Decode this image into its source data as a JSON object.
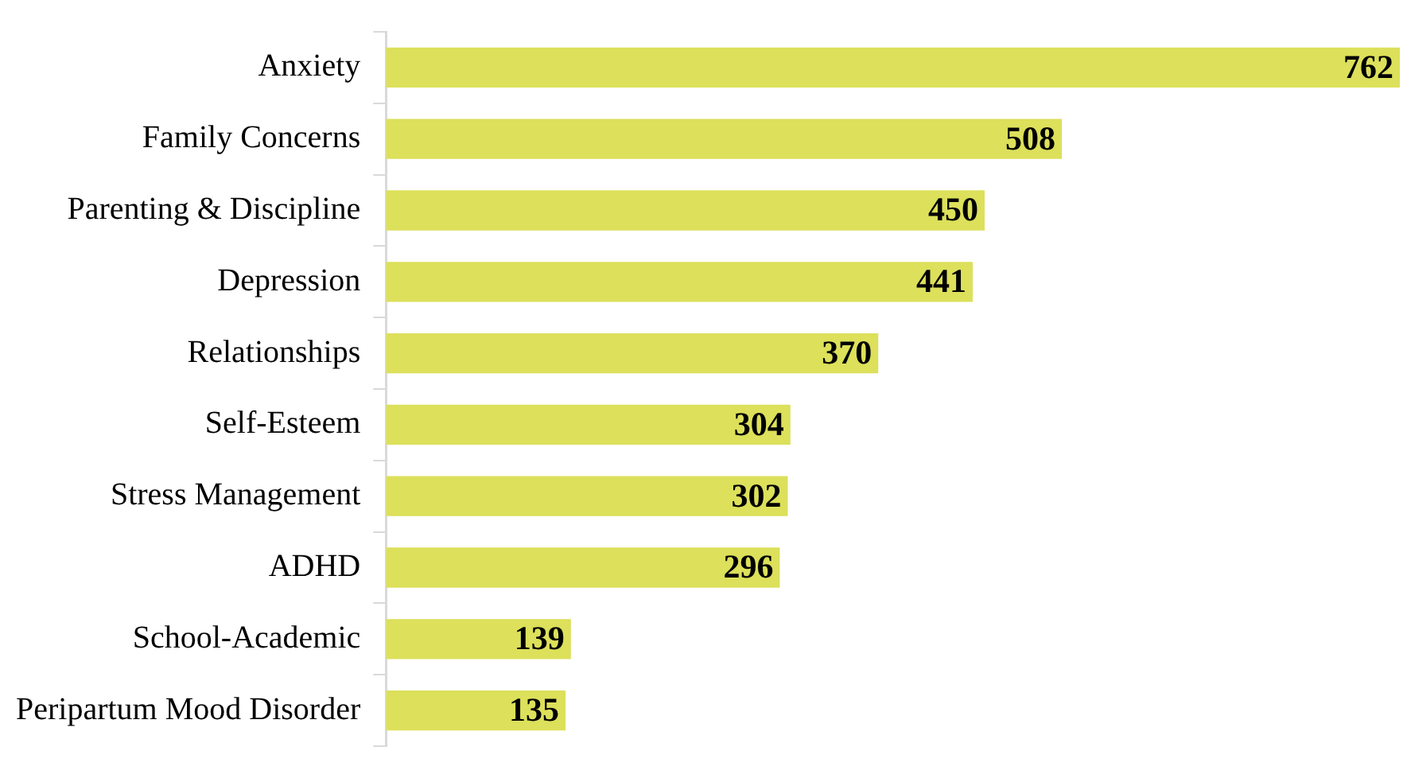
{
  "chart_data": {
    "type": "bar",
    "orientation": "horizontal",
    "categories": [
      "Anxiety",
      "Family Concerns",
      "Parenting & Discipline",
      "Depression",
      "Relationships",
      "Self-Esteem",
      "Stress Management",
      "ADHD",
      "School-Academic",
      "Peripartum Mood Disorder"
    ],
    "values": [
      762,
      508,
      450,
      441,
      370,
      304,
      302,
      296,
      139,
      135
    ],
    "color": "#dce05a",
    "data_labels": true,
    "legend": false,
    "grid": false,
    "tick_labels": "y"
  }
}
